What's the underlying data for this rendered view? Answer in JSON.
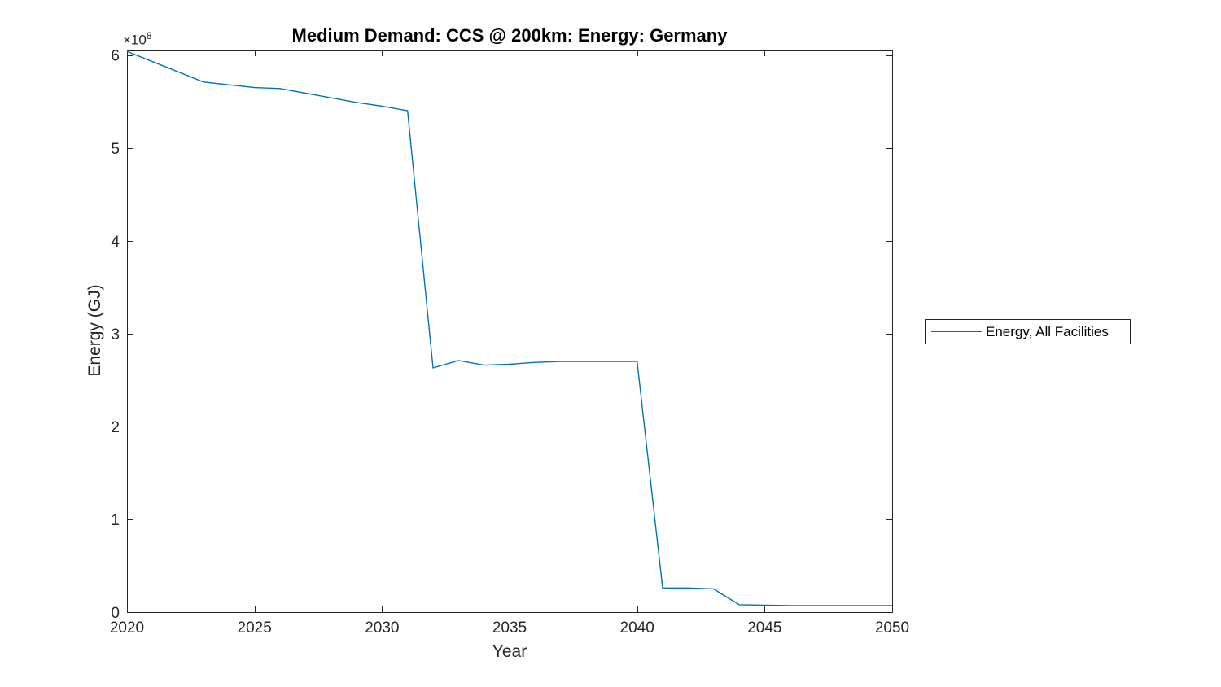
{
  "figure": {
    "background_color": "#ffffff",
    "axis_color": "#262626",
    "title_color": "#000000"
  },
  "chart_data": {
    "type": "line",
    "title": "Medium Demand: CCS @ 200km: Energy: Germany",
    "xlabel": "Year",
    "ylabel": "Energy (GJ)",
    "y_multiplier": {
      "base": "×10",
      "exponent": "8"
    },
    "grid": false,
    "legend_position": "right-outside",
    "xlim": [
      2020,
      2050
    ],
    "ylim": [
      0,
      605000000
    ],
    "x_ticks": [
      2020,
      2025,
      2030,
      2035,
      2040,
      2045,
      2050
    ],
    "x_tick_labels": [
      "2020",
      "2025",
      "2030",
      "2035",
      "2040",
      "2045",
      "2050"
    ],
    "y_ticks": [
      0,
      100000000,
      200000000,
      300000000,
      400000000,
      500000000,
      600000000
    ],
    "y_tick_labels": [
      "0",
      "1",
      "2",
      "3",
      "4",
      "5",
      "6"
    ],
    "x": [
      2020,
      2021,
      2022,
      2023,
      2024,
      2025,
      2026,
      2027,
      2028,
      2029,
      2030,
      2031,
      2032,
      2033,
      2034,
      2035,
      2036,
      2037,
      2038,
      2039,
      2040,
      2041,
      2042,
      2043,
      2044,
      2045,
      2046,
      2047,
      2048,
      2049,
      2050
    ],
    "series": [
      {
        "name": "Energy, All Facilities",
        "color": "#0072BD",
        "values": [
          604000000,
          593000000,
          582000000,
          571000000,
          568000000,
          565000000,
          564000000,
          559000000,
          554000000,
          549000000,
          545000000,
          540000000,
          263000000,
          271000000,
          266000000,
          267000000,
          269000000,
          270000000,
          270000000,
          270000000,
          270000000,
          26000000,
          26000000,
          25000000,
          8000000,
          7500000,
          7000000,
          7000000,
          7000000,
          7000000,
          7000000
        ]
      }
    ]
  }
}
